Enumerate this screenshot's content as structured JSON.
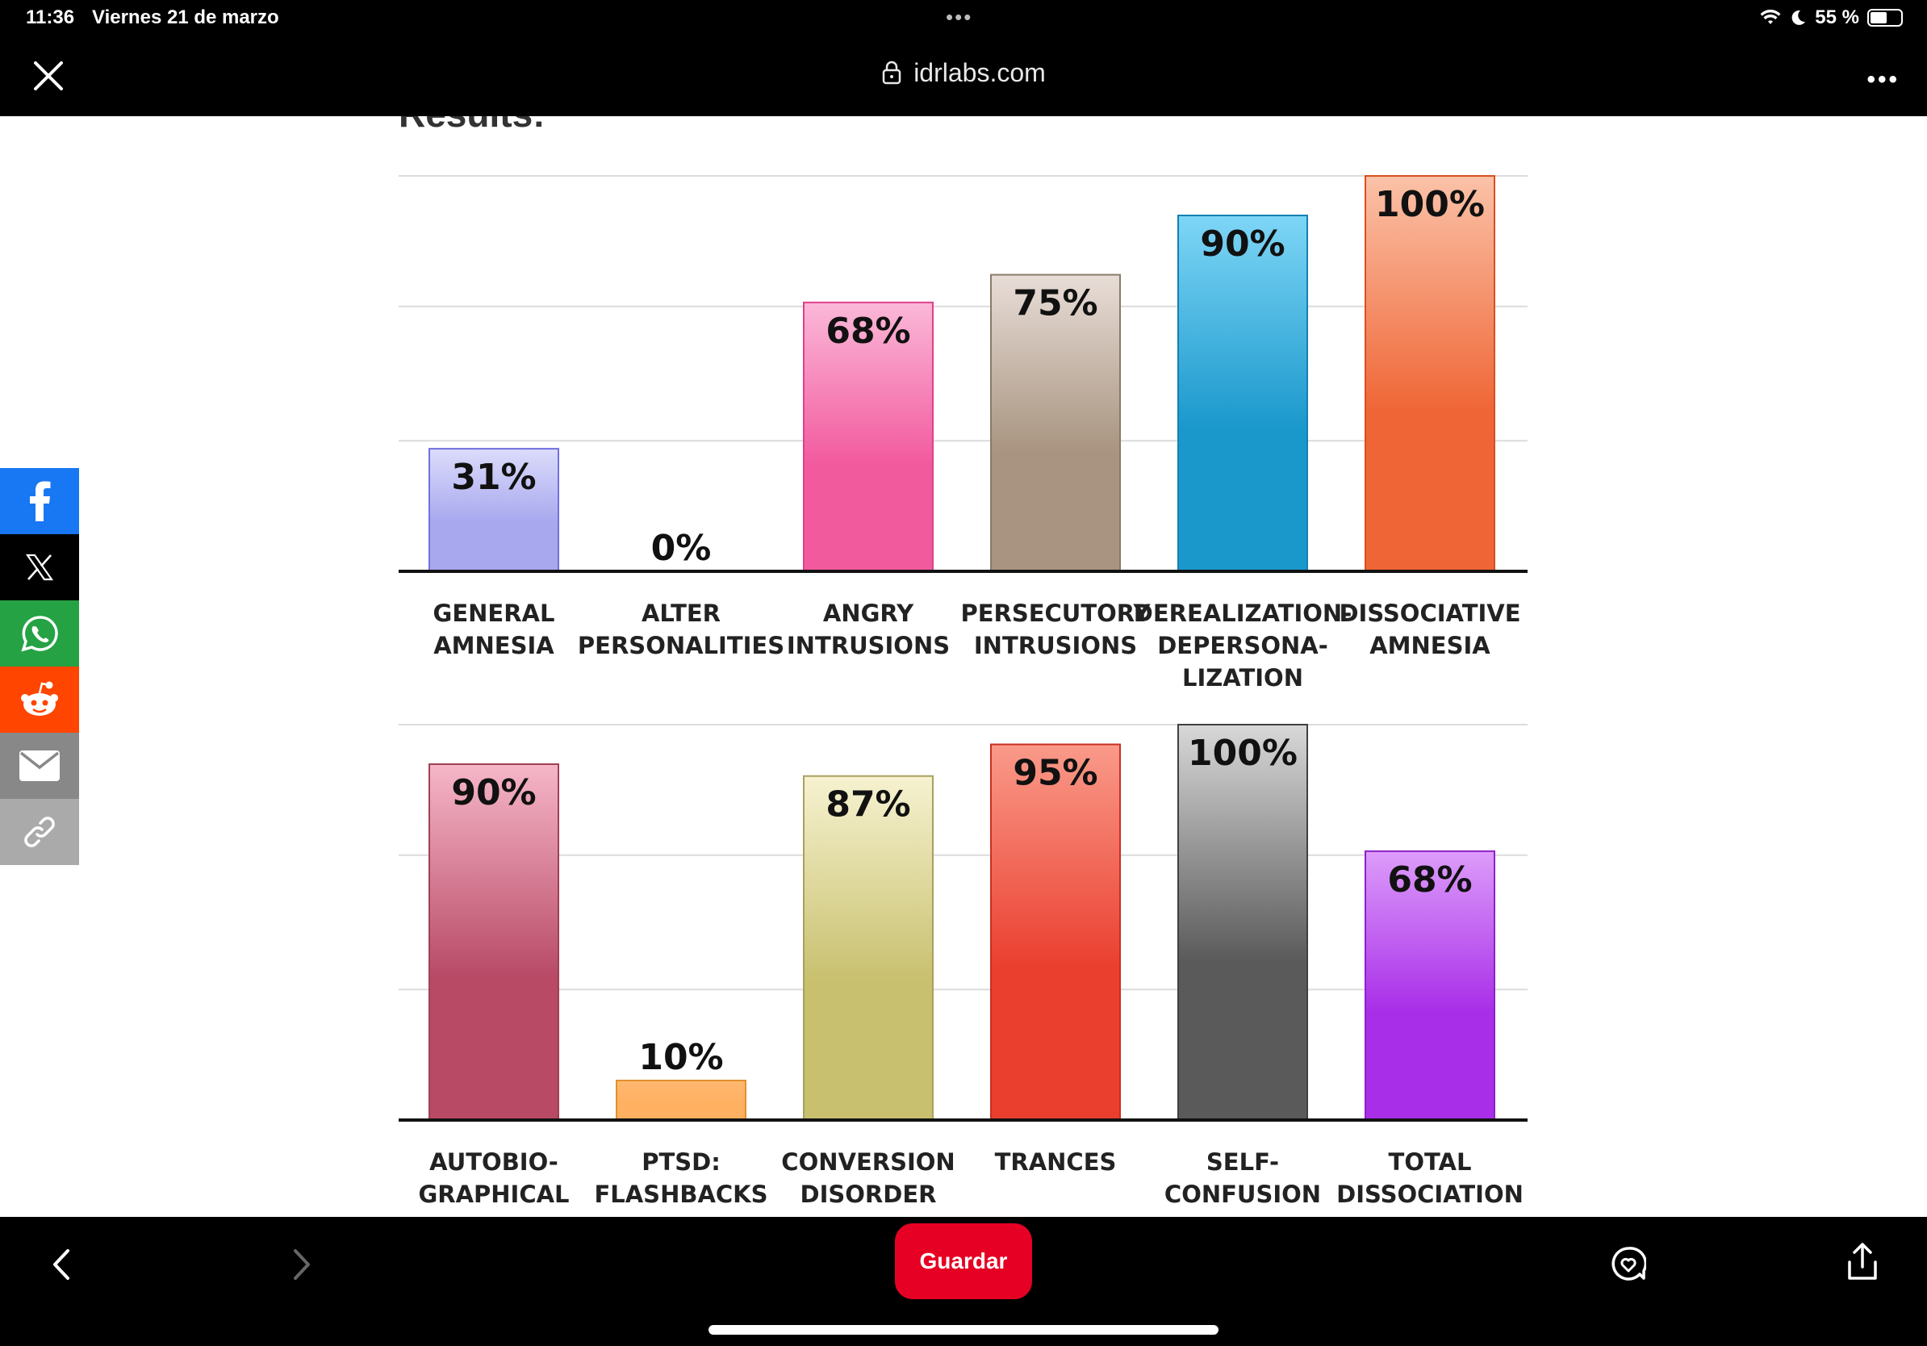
{
  "status": {
    "time": "11:36",
    "date": "Viernes 21 de marzo",
    "battery": "55 %",
    "battery_level": 0.55
  },
  "browser": {
    "url": "idrlabs.com"
  },
  "page": {
    "heading": "Results:"
  },
  "share": [
    {
      "icon": "facebook-icon",
      "color": "#1877f2"
    },
    {
      "icon": "x-icon",
      "color": "#000000"
    },
    {
      "icon": "whatsapp-icon",
      "color": "#25a244"
    },
    {
      "icon": "reddit-icon",
      "color": "#ff4500"
    },
    {
      "icon": "email-icon",
      "color": "#888888"
    },
    {
      "icon": "link-icon",
      "color": "#aaaaaa"
    }
  ],
  "bottom_bar": {
    "save_label": "Guardar"
  },
  "chart_data": [
    {
      "type": "bar",
      "ylim": [
        0,
        100
      ],
      "grid": true,
      "categories": [
        [
          "GENERAL",
          "AMNESIA"
        ],
        [
          "ALTER",
          "PERSONALITIES"
        ],
        [
          "ANGRY",
          "INTRUSIONS"
        ],
        [
          "PERSECUTORY",
          "INTRUSIONS"
        ],
        [
          "DEREALIZATION-",
          "DEPERSONA-",
          "LIZATION"
        ],
        [
          "DISSOCIATIVE",
          "AMNESIA"
        ]
      ],
      "values": [
        31,
        0,
        68,
        75,
        90,
        100
      ],
      "labels": [
        "31%",
        "0%",
        "68%",
        "75%",
        "90%",
        "100%"
      ],
      "colors": [
        [
          "#dcdcfb",
          "#a8a8ef",
          "#7070e0"
        ],
        [
          "#cccccc",
          "#bbbbbb",
          "#999999"
        ],
        [
          "#fbb8d8",
          "#f25a9e",
          "#e0408a"
        ],
        [
          "#e8ddd7",
          "#a89480",
          "#8a7a68"
        ],
        [
          "#7ed6f6",
          "#1a98cc",
          "#1580b0"
        ],
        [
          "#fbc2a8",
          "#ef6535",
          "#d84f1f"
        ]
      ]
    },
    {
      "type": "bar",
      "ylim": [
        0,
        100
      ],
      "grid": true,
      "categories": [
        [
          "AUTOBIO-",
          "GRAPHICAL"
        ],
        [
          "PTSD:",
          "FLASHBACKS"
        ],
        [
          "CONVERSION",
          "DISORDER"
        ],
        [
          "TRANCES"
        ],
        [
          "SELF-",
          "CONFUSION"
        ],
        [
          "TOTAL",
          "DISSOCIATION"
        ]
      ],
      "values": [
        90,
        10,
        87,
        95,
        100,
        68
      ],
      "labels": [
        "90%",
        "10%",
        "87%",
        "95%",
        "100%",
        "68%"
      ],
      "colors": [
        [
          "#f6b6c8",
          "#b84a66",
          "#a04055"
        ],
        [
          "#ffb870",
          "#ffb060",
          "#e09030"
        ],
        [
          "#f6f2d0",
          "#c8c06e",
          "#a8a060"
        ],
        [
          "#fa9a8a",
          "#ea3e2e",
          "#c83020"
        ],
        [
          "#d8d8d8",
          "#5a5a5a",
          "#404040"
        ],
        [
          "#dd9cfa",
          "#a82ee8",
          "#8e20c8"
        ]
      ]
    }
  ]
}
